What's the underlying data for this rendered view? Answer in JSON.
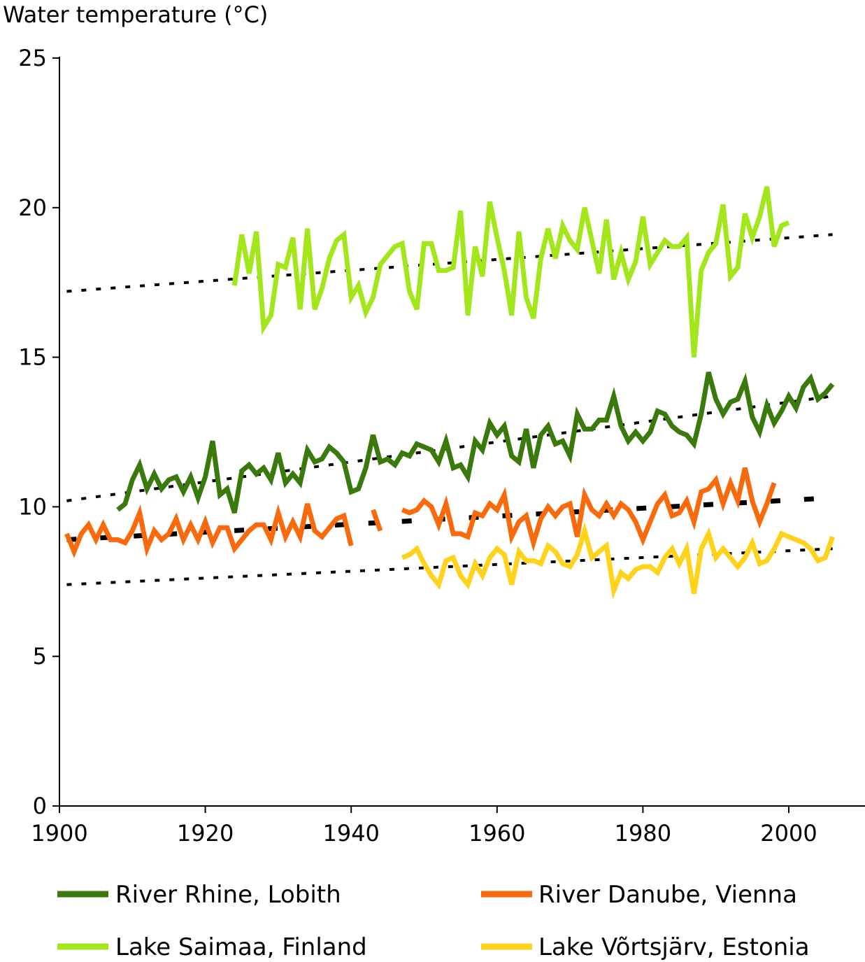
{
  "chart_data": {
    "type": "line",
    "title": "",
    "ylabel": "Water temperature (°C)",
    "xlabel": "",
    "xlim": [
      1900,
      2010
    ],
    "ylim": [
      0,
      25
    ],
    "x_ticks": [
      1900,
      1920,
      1940,
      1960,
      1980,
      2000
    ],
    "y_ticks": [
      0,
      5,
      10,
      15,
      20,
      25
    ],
    "grid": false,
    "legend_position": "bottom",
    "series": [
      {
        "name": "River Rhine, Lobith",
        "color": "#3a7a0c",
        "x": [
          1908,
          1909,
          1910,
          1911,
          1912,
          1913,
          1914,
          1915,
          1916,
          1917,
          1918,
          1919,
          1920,
          1921,
          1922,
          1923,
          1924,
          1925,
          1926,
          1927,
          1928,
          1929,
          1930,
          1931,
          1932,
          1933,
          1934,
          1935,
          1936,
          1937,
          1938,
          1939,
          1940,
          1941,
          1942,
          1943,
          1944,
          1945,
          1946,
          1947,
          1948,
          1949,
          1950,
          1951,
          1952,
          1953,
          1954,
          1955,
          1956,
          1957,
          1958,
          1959,
          1960,
          1961,
          1962,
          1963,
          1964,
          1965,
          1966,
          1967,
          1968,
          1969,
          1970,
          1971,
          1972,
          1973,
          1974,
          1975,
          1976,
          1977,
          1978,
          1979,
          1980,
          1981,
          1982,
          1983,
          1984,
          1985,
          1986,
          1987,
          1988,
          1989,
          1990,
          1991,
          1992,
          1993,
          1994,
          1995,
          1996,
          1997,
          1998,
          1999,
          2000,
          2001,
          2002,
          2003,
          2004,
          2005,
          2006
        ],
        "values": [
          9.9,
          10.1,
          10.9,
          11.4,
          10.6,
          11.1,
          10.6,
          10.9,
          11.0,
          10.5,
          11.0,
          10.3,
          11.0,
          12.2,
          10.4,
          10.6,
          9.8,
          11.2,
          11.4,
          11.1,
          11.3,
          10.9,
          11.8,
          10.8,
          11.1,
          10.8,
          11.9,
          11.5,
          11.6,
          12.0,
          11.8,
          11.5,
          10.5,
          10.6,
          11.3,
          12.4,
          11.5,
          11.6,
          11.4,
          11.8,
          11.7,
          12.1,
          12.0,
          11.9,
          11.5,
          12.2,
          11.3,
          11.4,
          11.0,
          12.2,
          11.9,
          12.8,
          12.4,
          12.7,
          11.7,
          11.5,
          12.6,
          11.3,
          12.4,
          12.7,
          12.1,
          12.2,
          11.7,
          13.1,
          12.6,
          12.6,
          12.9,
          12.9,
          13.7,
          12.7,
          12.2,
          12.5,
          12.2,
          12.5,
          13.2,
          13.1,
          12.7,
          12.5,
          12.4,
          12.1,
          13.1,
          14.5,
          13.6,
          13.1,
          13.5,
          13.6,
          14.2,
          13.0,
          12.5,
          13.4,
          12.8,
          13.2,
          13.7,
          13.3,
          14.0,
          14.3,
          13.6,
          13.8,
          14.1
        ]
      },
      {
        "name": "River Danube, Vienna",
        "color": "#f86a0c",
        "x": [
          1901,
          1902,
          1903,
          1904,
          1905,
          1906,
          1907,
          1908,
          1909,
          1910,
          1911,
          1912,
          1913,
          1914,
          1915,
          1916,
          1917,
          1918,
          1919,
          1920,
          1921,
          1922,
          1923,
          1924,
          1925,
          1926,
          1927,
          1928,
          1929,
          1930,
          1931,
          1932,
          1933,
          1934,
          1935,
          1936,
          1937,
          1938,
          1939,
          1940,
          null,
          1943,
          1944,
          null,
          1947,
          1948,
          1949,
          1950,
          1951,
          1952,
          1953,
          1954,
          1955,
          1956,
          1957,
          1958,
          1959,
          1960,
          1961,
          1962,
          1963,
          1964,
          1965,
          1966,
          1967,
          1968,
          1969,
          1970,
          1971,
          1972,
          1973,
          1974,
          1975,
          1976,
          1977,
          1978,
          1979,
          1980,
          1981,
          1982,
          1983,
          1984,
          1985,
          1986,
          1987,
          1988,
          1989,
          1990,
          1991,
          1992,
          1993,
          1994,
          1995,
          1996,
          1997,
          1998
        ],
        "values": [
          9.1,
          8.5,
          9.1,
          9.4,
          8.9,
          9.4,
          8.9,
          8.9,
          8.8,
          9.2,
          9.8,
          8.6,
          9.2,
          8.9,
          9.1,
          9.6,
          8.9,
          9.4,
          8.9,
          9.5,
          8.8,
          9.3,
          9.3,
          8.6,
          8.9,
          9.2,
          9.4,
          9.4,
          8.9,
          9.8,
          9.0,
          9.5,
          9.0,
          10.1,
          9.2,
          9.0,
          9.3,
          9.6,
          9.7,
          8.7,
          null,
          9.9,
          9.2,
          null,
          9.9,
          9.8,
          9.9,
          10.2,
          10.0,
          9.4,
          10.1,
          9.1,
          9.1,
          9.0,
          9.8,
          9.7,
          10.1,
          9.9,
          10.4,
          9.0,
          9.5,
          9.7,
          8.8,
          9.6,
          10.0,
          9.7,
          10.0,
          10.1,
          9.0,
          10.4,
          9.9,
          9.7,
          10.1,
          9.7,
          10.1,
          9.9,
          9.5,
          8.9,
          9.5,
          10.1,
          10.4,
          9.7,
          9.8,
          10.2,
          9.5,
          10.5,
          10.6,
          10.9,
          10.1,
          10.8,
          10.2,
          11.3,
          10.2,
          9.5,
          10.1,
          10.8
        ]
      },
      {
        "name": "Lake Saimaa, Finland",
        "color": "#a4e61c",
        "x": [
          1924,
          1925,
          1926,
          1927,
          1928,
          1929,
          1930,
          1931,
          1932,
          1933,
          1934,
          1935,
          1936,
          1937,
          1938,
          1939,
          1940,
          1941,
          1942,
          1943,
          1944,
          1945,
          1946,
          1947,
          1948,
          1949,
          1950,
          1951,
          1952,
          1953,
          1954,
          1955,
          1956,
          1957,
          1958,
          1959,
          1960,
          1961,
          1962,
          1963,
          1964,
          1965,
          1966,
          1967,
          1968,
          1969,
          1970,
          1971,
          1972,
          1973,
          1974,
          1975,
          1976,
          1977,
          1978,
          1979,
          1980,
          1981,
          1982,
          1983,
          1984,
          1985,
          1986,
          1987,
          1988,
          1989,
          1990,
          1991,
          1992,
          1993,
          1994,
          1995,
          1996,
          1997,
          1998,
          1999,
          2000
        ],
        "values": [
          17.4,
          19.1,
          17.8,
          19.2,
          16.0,
          16.4,
          18.1,
          18.0,
          19.0,
          16.6,
          19.3,
          16.6,
          17.3,
          18.3,
          18.9,
          19.1,
          17.0,
          17.4,
          16.5,
          17.0,
          18.1,
          18.4,
          18.7,
          18.8,
          17.2,
          16.6,
          18.8,
          18.8,
          17.9,
          17.9,
          18.0,
          19.9,
          16.4,
          18.7,
          17.7,
          20.2,
          19.0,
          17.9,
          16.4,
          19.2,
          17.0,
          16.3,
          18.3,
          19.3,
          18.3,
          19.4,
          18.9,
          18.6,
          20.0,
          18.9,
          17.8,
          19.6,
          17.6,
          18.5,
          17.6,
          18.2,
          19.7,
          18.1,
          18.5,
          18.9,
          18.7,
          18.7,
          19.0,
          15.0,
          17.9,
          18.5,
          18.8,
          20.1,
          17.7,
          18.0,
          19.8,
          19.0,
          19.7,
          20.7,
          18.7,
          19.4,
          19.5
        ]
      },
      {
        "name": "Lake Võrtsjärv, Estonia",
        "color": "#ffd21c",
        "x": [
          1947,
          1948,
          1949,
          1950,
          1951,
          1952,
          1953,
          1954,
          1955,
          1956,
          1957,
          1958,
          1959,
          1960,
          1961,
          1962,
          1963,
          1964,
          1965,
          1966,
          1967,
          1968,
          1969,
          1970,
          1971,
          1972,
          1973,
          1974,
          1975,
          1976,
          1977,
          1978,
          1979,
          1980,
          1981,
          1982,
          1983,
          1984,
          1985,
          1986,
          1987,
          1988,
          1989,
          1990,
          1991,
          1992,
          1993,
          1994,
          1995,
          1996,
          1997,
          1998,
          1999,
          2000,
          2001,
          2002,
          2003,
          2004,
          2005,
          2006
        ],
        "values": [
          8.3,
          8.4,
          8.6,
          8.1,
          7.7,
          7.4,
          8.2,
          8.3,
          7.7,
          7.4,
          8.1,
          7.7,
          8.3,
          8.6,
          8.4,
          7.4,
          8.5,
          8.2,
          8.2,
          8.1,
          8.7,
          8.5,
          8.1,
          8.0,
          8.4,
          9.2,
          8.3,
          8.5,
          8.7,
          7.2,
          7.8,
          7.6,
          7.9,
          8.0,
          8.0,
          7.8,
          8.3,
          8.6,
          8.1,
          8.6,
          7.1,
          8.6,
          9.1,
          8.3,
          8.6,
          8.3,
          8.0,
          8.3,
          8.8,
          8.1,
          8.2,
          8.6,
          9.1,
          9.0,
          8.9,
          8.8,
          8.6,
          8.2,
          8.3,
          9.0
        ]
      }
    ],
    "trendlines": [
      {
        "series": "Lake Saimaa, Finland",
        "style": "dotted",
        "x": [
          1901,
          2006
        ],
        "values": [
          17.2,
          19.1
        ]
      },
      {
        "series": "River Rhine, Lobith",
        "style": "dotted",
        "x": [
          1901,
          2006
        ],
        "values": [
          10.2,
          13.7
        ]
      },
      {
        "series": "River Danube, Vienna",
        "style": "dashed",
        "x": [
          1901,
          2006
        ],
        "values": [
          8.9,
          10.3
        ]
      },
      {
        "series": "Lake Võrtsjärv, Estonia",
        "style": "dotted",
        "x": [
          1901,
          2006
        ],
        "values": [
          7.4,
          8.6
        ]
      }
    ]
  }
}
